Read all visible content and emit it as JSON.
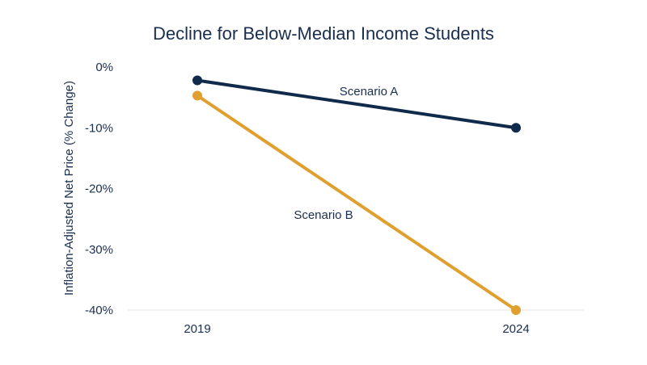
{
  "chart_data": {
    "type": "line",
    "title": "Decline for Below-Median Income Students",
    "xlabel": "",
    "ylabel": "Inflation-Adjusted Net Price (% Change)",
    "categories": [
      "2019",
      "2024"
    ],
    "ylim": [
      -40,
      0
    ],
    "yticks": [
      0,
      -10,
      -20,
      -30,
      -40
    ],
    "ytick_labels": [
      "0%",
      "-10%",
      "-20%",
      "-30%",
      "-40%"
    ],
    "grid": false,
    "series": [
      {
        "name": "Scenario A",
        "values": [
          -2.2,
          -10
        ],
        "color": "#0f2a4a"
      },
      {
        "name": "Scenario B",
        "values": [
          -4.7,
          -40
        ],
        "color": "#e0a030"
      }
    ]
  }
}
